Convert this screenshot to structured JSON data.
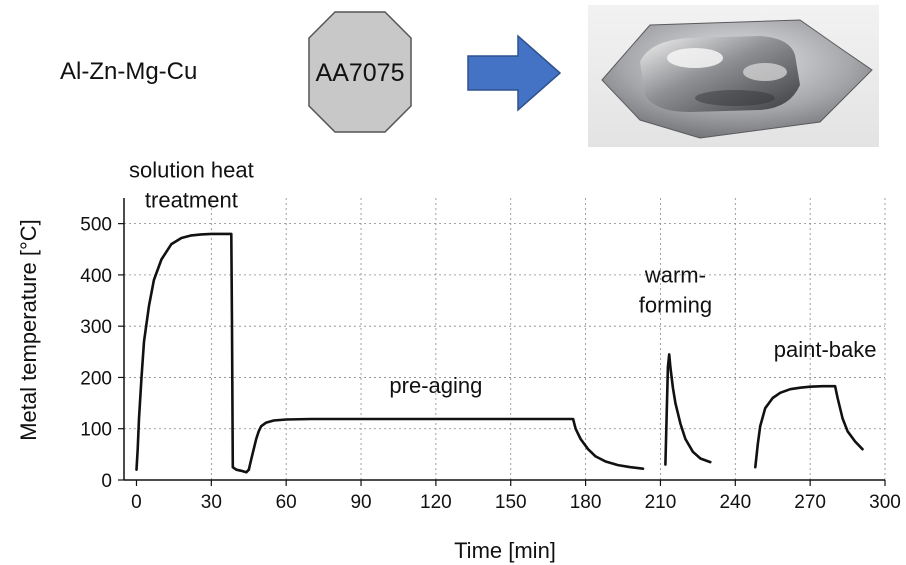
{
  "alloy_family": "Al-Zn-Mg-Cu",
  "alloy_grade": "AA7075",
  "colors": {
    "octagon_fill": "#c8c8c8",
    "octagon_stroke": "#555555",
    "arrow_fill": "#4472c4",
    "arrow_stroke": "#2f528f",
    "curve": "#111111",
    "grid": "#888888"
  },
  "icons": {
    "blank": "octagon-blank-icon",
    "arrow": "right-arrow-icon",
    "part": "formed-part-photo-icon"
  },
  "chart_data": {
    "type": "line",
    "title": "",
    "xlabel": "Time [min]",
    "ylabel": "Metal temperature [°C]",
    "xlim": [
      -5,
      300
    ],
    "ylim": [
      0,
      550
    ],
    "xticks": [
      0,
      30,
      60,
      90,
      120,
      150,
      180,
      210,
      240,
      270,
      300
    ],
    "yticks": [
      0,
      100,
      200,
      300,
      400,
      500
    ],
    "grid": true,
    "annotations": [
      {
        "lines": [
          "solution heat",
          "treatment"
        ],
        "x": 22,
        "y": 590
      },
      {
        "lines": [
          "pre-aging"
        ],
        "x": 120,
        "y": 170
      },
      {
        "lines": [
          "warm-",
          "forming"
        ],
        "x": 216,
        "y": 385
      },
      {
        "lines": [
          "paint-bake"
        ],
        "x": 276,
        "y": 240
      }
    ],
    "series": [
      {
        "name": "",
        "segments": [
          {
            "stage": "solution heat treatment",
            "x": [
              0,
              0.5,
              1,
              2,
              3,
              5,
              7,
              10,
              14,
              18,
              22,
              26,
              30,
              34,
              38,
              38.3,
              38.6,
              40,
              42,
              44,
              45
            ],
            "y": [
              20,
              60,
              120,
              200,
              270,
              340,
              390,
              430,
              460,
              472,
              477,
              479,
              480,
              480,
              480,
              300,
              25,
              20,
              18,
              15,
              20
            ]
          },
          {
            "stage": "pre-aging",
            "x": [
              45,
              46,
              47,
              48,
              49,
              50,
              52,
              55,
              60,
              70,
              100,
              140,
              175,
              176,
              178,
              181,
              184,
              188,
              193,
              198,
              203
            ],
            "y": [
              20,
              40,
              60,
              80,
              95,
              105,
              112,
              116,
              118,
              119,
              119,
              119,
              119,
              100,
              80,
              60,
              46,
              36,
              29,
              25,
              22
            ]
          },
          {
            "stage": "warm-forming",
            "x": [
              212,
              212.5,
              213,
              213.5,
              214,
              215,
              216,
              218,
              220,
              223,
              226,
              230
            ],
            "y": [
              30,
              130,
              220,
              245,
              220,
              180,
              150,
              110,
              80,
              55,
              42,
              35
            ]
          },
          {
            "stage": "paint-bake",
            "x": [
              248,
              249,
              250,
              252,
              255,
              258,
              262,
              266,
              270,
              275,
              280,
              281,
              283,
              285,
              288,
              291
            ],
            "y": [
              25,
              70,
              105,
              140,
              160,
              170,
              177,
              180,
              182,
              183,
              183,
              160,
              120,
              95,
              75,
              60
            ]
          }
        ]
      }
    ]
  }
}
